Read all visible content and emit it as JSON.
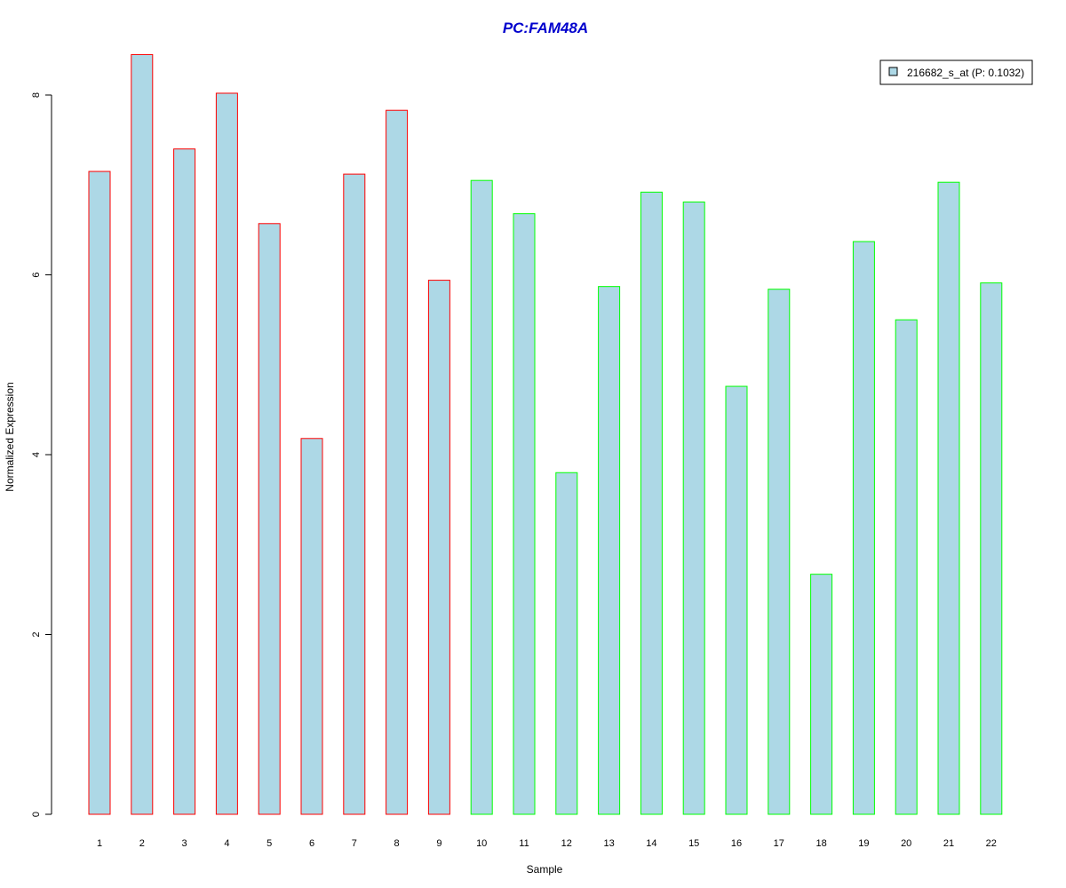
{
  "chart_data": {
    "type": "bar",
    "title": "PC:FAM48A",
    "xlabel": "Sample",
    "ylabel": "Normalized Expression",
    "categories": [
      "1",
      "2",
      "3",
      "4",
      "5",
      "6",
      "7",
      "8",
      "9",
      "10",
      "11",
      "12",
      "13",
      "14",
      "15",
      "16",
      "17",
      "18",
      "19",
      "20",
      "21",
      "22"
    ],
    "series": [
      {
        "name": "216682_s_at (P: 0.1032)",
        "values": [
          7.15,
          8.45,
          7.4,
          8.02,
          6.57,
          4.18,
          7.12,
          7.83,
          5.94,
          7.05,
          6.68,
          3.8,
          5.87,
          6.92,
          6.81,
          4.76,
          5.84,
          2.67,
          6.37,
          5.5,
          7.03,
          5.91
        ]
      }
    ],
    "bar_outline_colors": [
      "#ff0000",
      "#ff0000",
      "#ff0000",
      "#ff0000",
      "#ff0000",
      "#ff0000",
      "#ff0000",
      "#ff0000",
      "#ff0000",
      "#00ff00",
      "#00ff00",
      "#00ff00",
      "#00ff00",
      "#00ff00",
      "#00ff00",
      "#00ff00",
      "#00ff00",
      "#00ff00",
      "#00ff00",
      "#00ff00",
      "#00ff00",
      "#00ff00"
    ],
    "bar_fill_color": "#add8e6",
    "title_color": "#0000cd",
    "yticks": [
      0,
      2,
      4,
      6,
      8
    ],
    "ylim": [
      0,
      8.45
    ],
    "grid": false,
    "legend_position": "top-right"
  }
}
